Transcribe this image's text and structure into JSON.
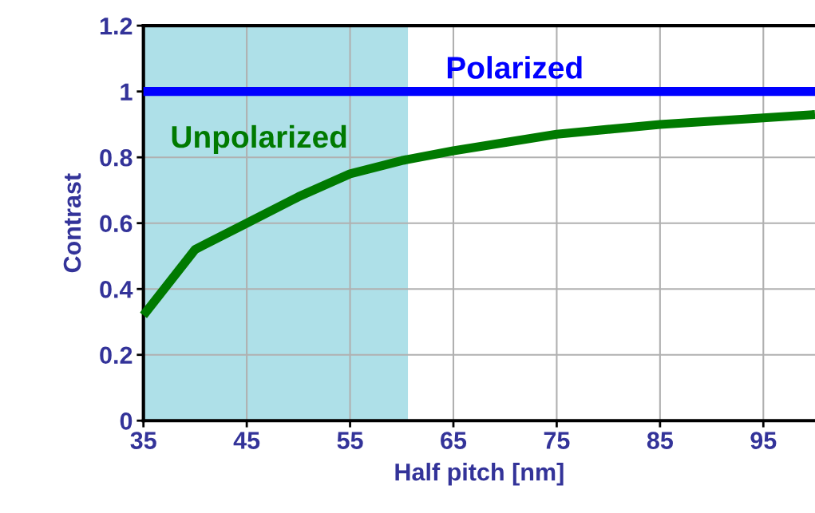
{
  "chart_data": {
    "type": "line",
    "xlabel": "Half pitch [nm]",
    "ylabel": "Contrast",
    "xlim": [
      35,
      100
    ],
    "ylim": [
      0,
      1.2
    ],
    "xticks": [
      35,
      45,
      55,
      65,
      75,
      85,
      95
    ],
    "yticks": [
      0,
      0.2,
      0.4,
      0.6,
      0.8,
      1,
      1.2
    ],
    "grid": true,
    "legend": false,
    "marker": "none",
    "line_style": "solid",
    "bands": [
      {
        "axis": "x",
        "from": 35,
        "to": 60.6,
        "color": "#aee0e8"
      }
    ],
    "series": [
      {
        "name": "Polarized",
        "color": "#0000ff",
        "x": [
          35,
          100
        ],
        "values": [
          1,
          1
        ]
      },
      {
        "name": "Unpolarized",
        "color": "#007a00",
        "x": [
          35,
          40,
          45,
          50,
          55,
          60,
          65,
          75,
          85,
          95,
          100
        ],
        "values": [
          0.32,
          0.52,
          0.6,
          0.68,
          0.75,
          0.79,
          0.82,
          0.87,
          0.9,
          0.92,
          0.93
        ]
      }
    ]
  }
}
